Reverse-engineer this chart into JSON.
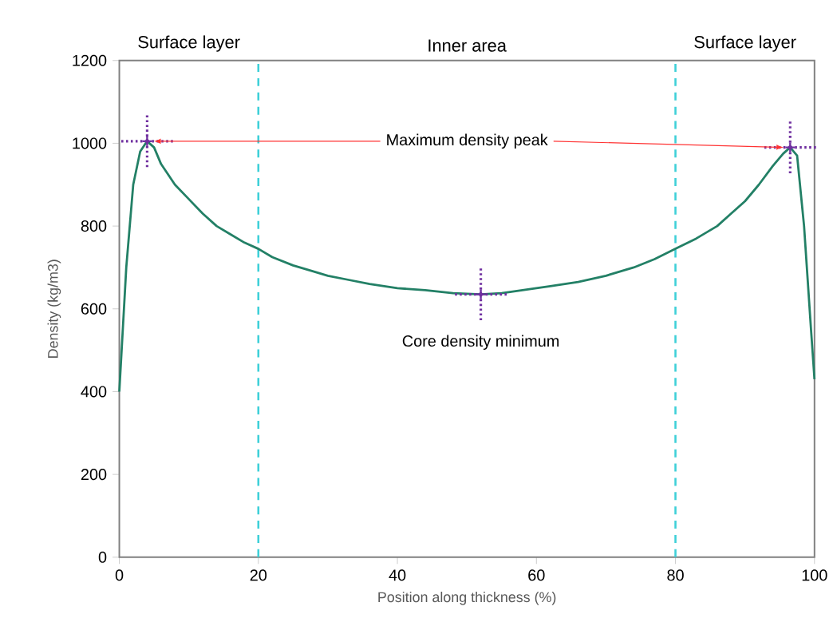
{
  "chart_data": {
    "type": "line",
    "xlabel": "Position along thickness (%)",
    "ylabel": "Density (kg/m3)",
    "xlim": [
      0,
      100
    ],
    "ylim": [
      0,
      1200
    ],
    "xticks": [
      0,
      20,
      40,
      60,
      80,
      100
    ],
    "yticks": [
      0,
      200,
      400,
      600,
      800,
      1000,
      1200
    ],
    "grid": false,
    "series": [
      {
        "type": "line",
        "color": "#238066",
        "marker": "none",
        "line_style": "solid",
        "x": [
          0,
          1,
          2,
          3,
          4,
          5,
          6,
          8,
          10,
          12,
          14,
          16,
          18,
          20,
          22,
          25,
          28,
          30,
          33,
          36,
          40,
          44,
          48,
          52,
          55,
          58,
          62,
          66,
          70,
          74,
          77,
          80,
          83,
          86,
          88,
          90,
          92,
          94,
          95.5,
          96.5,
          97.5,
          98.5,
          99.5,
          100
        ],
        "values": [
          400,
          700,
          900,
          980,
          1005,
          990,
          950,
          900,
          865,
          830,
          800,
          780,
          760,
          745,
          725,
          705,
          690,
          680,
          670,
          660,
          650,
          645,
          638,
          635,
          638,
          645,
          655,
          665,
          680,
          700,
          720,
          745,
          770,
          800,
          830,
          860,
          900,
          945,
          975,
          990,
          970,
          800,
          550,
          430
        ]
      },
      {
        "type": "scatter",
        "color": "#7030a0",
        "marker": "cross",
        "x": [
          4,
          52,
          96.5
        ],
        "values": [
          1005,
          635,
          990
        ],
        "errors": [
          65,
          65,
          65
        ],
        "xerrors": [
          4,
          4,
          4
        ]
      }
    ],
    "ref_lines": [
      {
        "axis": "x",
        "value": 20,
        "color": "#3fd0d8",
        "line_style": "dashed"
      },
      {
        "axis": "x",
        "value": 80,
        "color": "#3fd0d8",
        "line_style": "dashed"
      }
    ],
    "annotations": [
      "Surface layer",
      "Inner area",
      "Surface layer",
      {
        "text": "Maximum density peak",
        "x": 4,
        "y": 1005
      },
      {
        "text": "Core density minimum",
        "x": 52,
        "y": 635
      }
    ]
  }
}
